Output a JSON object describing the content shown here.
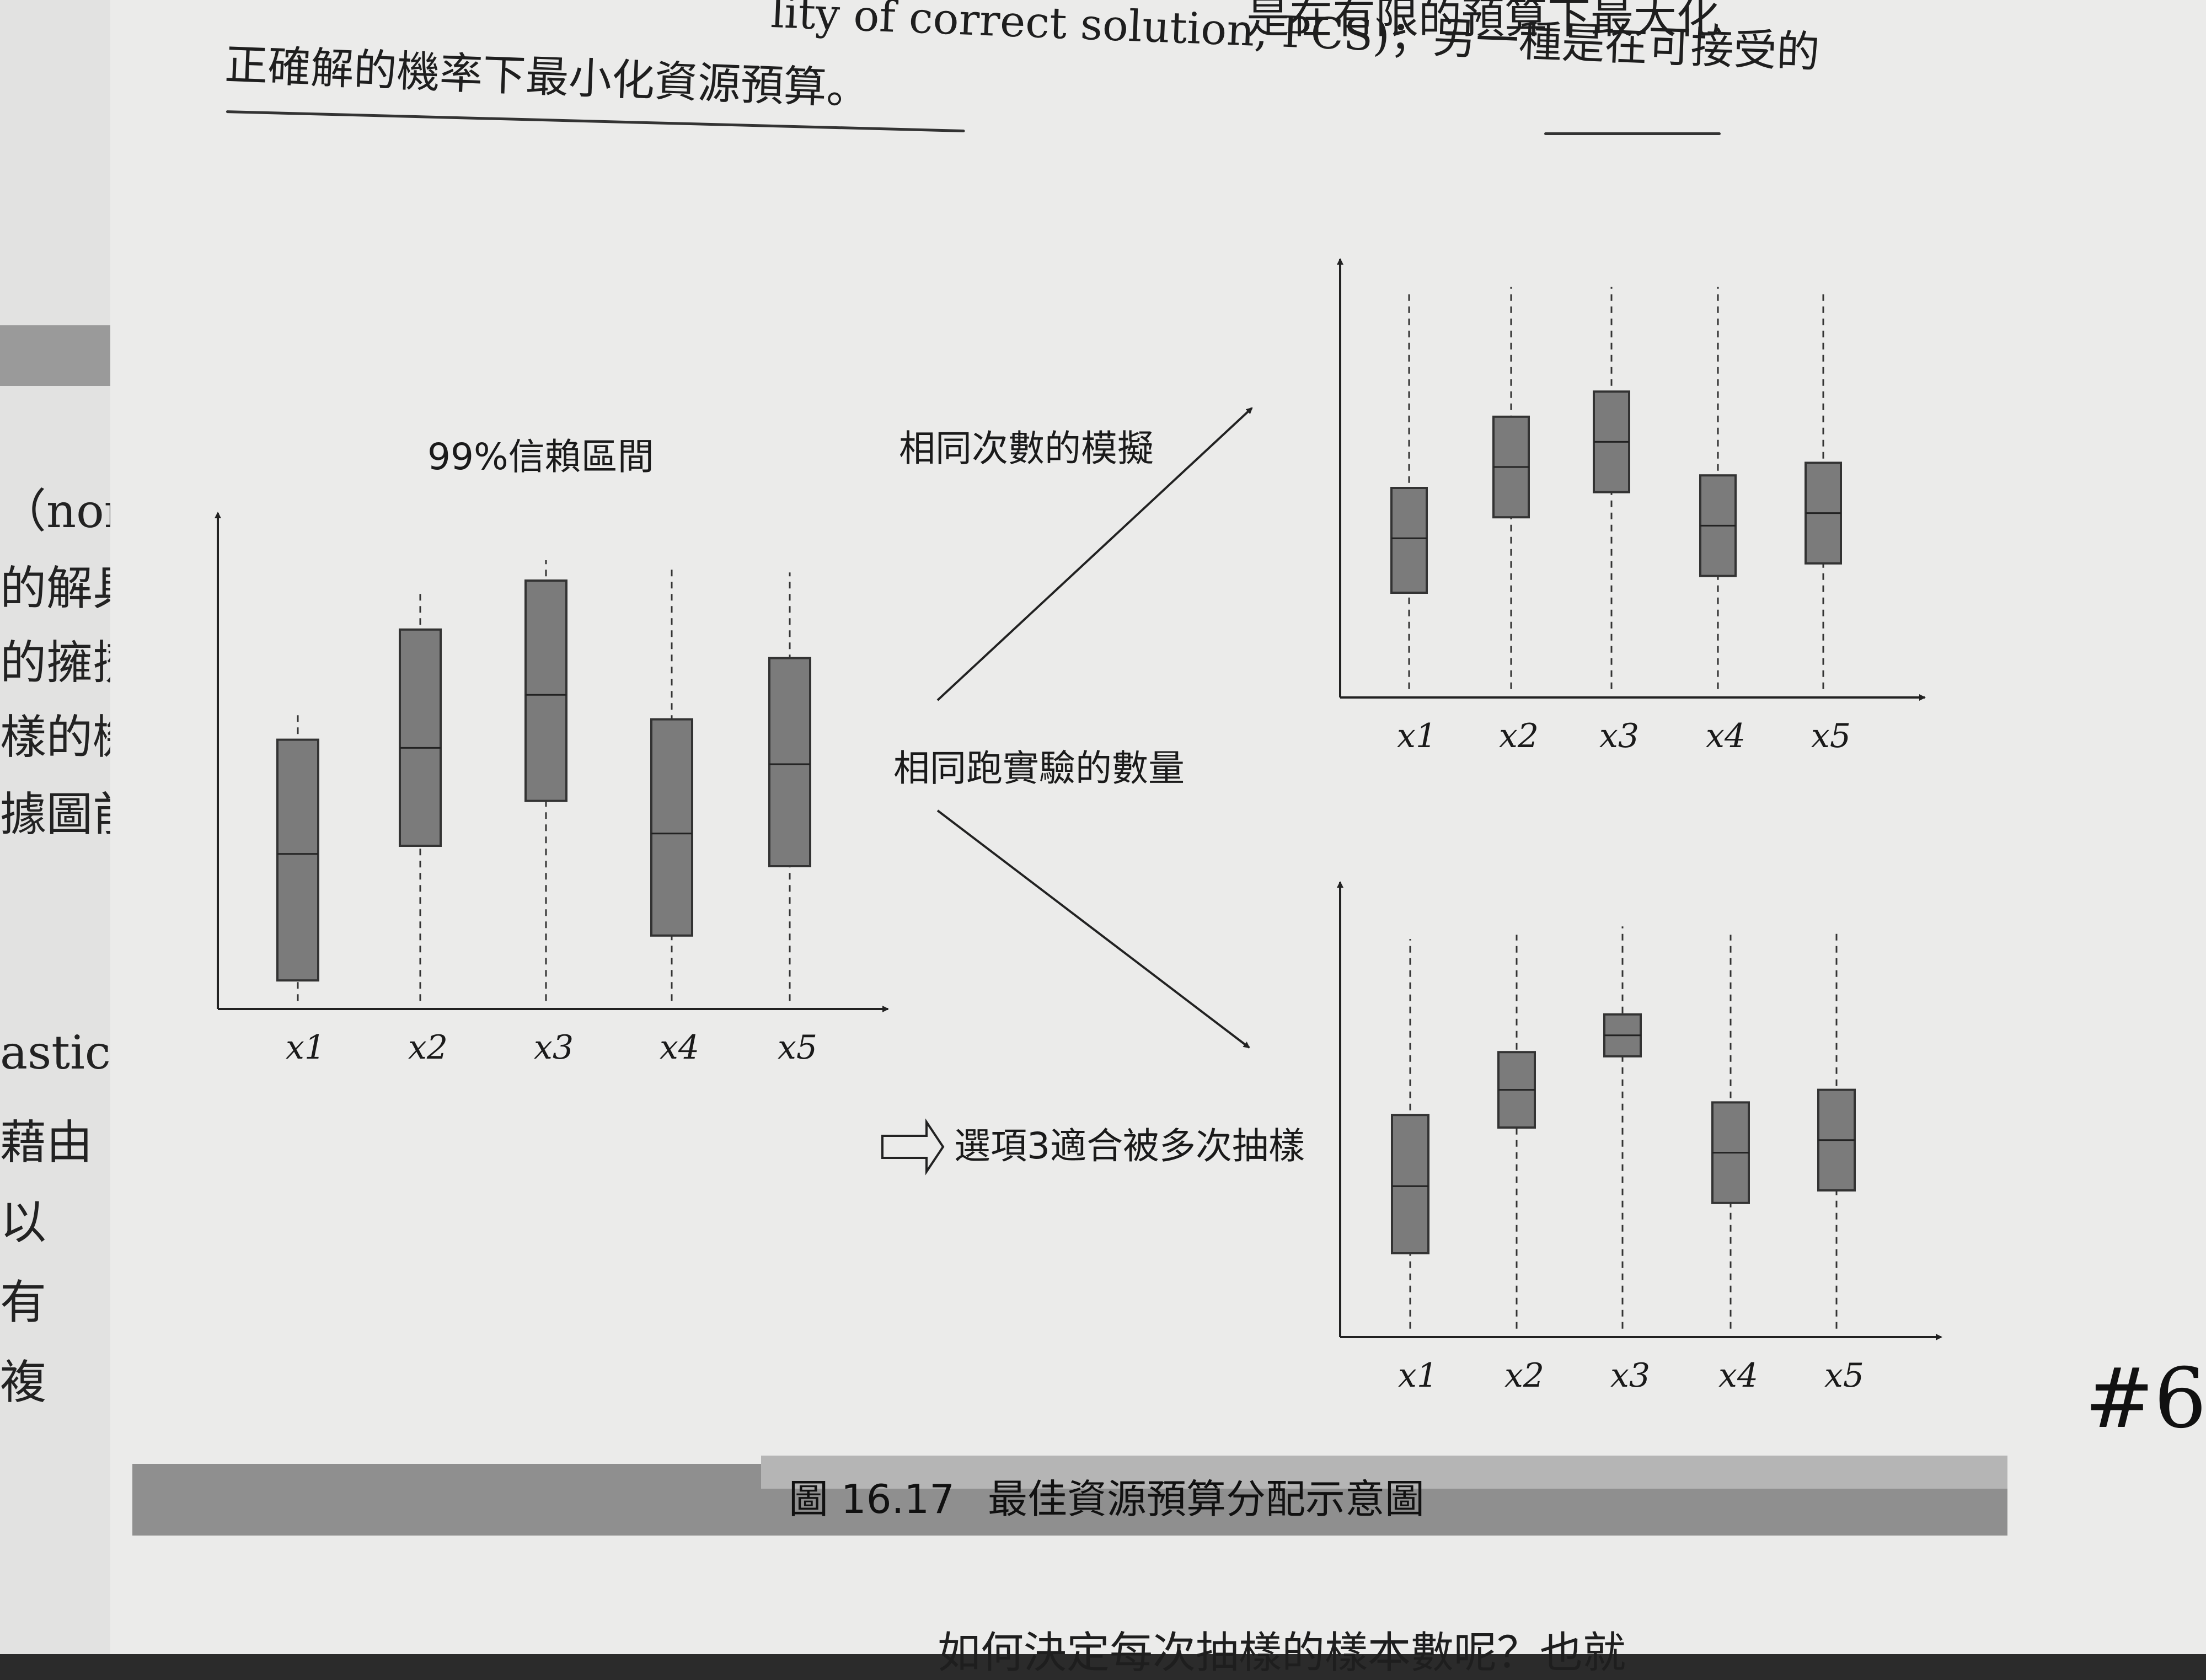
{
  "left_page": {
    "lines": [
      "（non-",
      "的解具",
      "的擁擠",
      "樣的機",
      "據圖前",
      "astic",
      "藉由",
      "以",
      "有",
      "複"
    ]
  },
  "header": {
    "line1_fragment": "lity of correct solution, PCS)；另一種是在可接受的",
    "line1_right": "是在有限的預算下最大化",
    "line2": "正確解的機率下最小化資源預算。"
  },
  "figure": {
    "left_chart_title": "99%信賴區間",
    "arrow_label_top": "相同次數的模擬",
    "arrow_label_mid": "相同跑實驗的數量",
    "conclusion": "選項3適合被多次抽樣",
    "x_tick_labels": [
      "x1",
      "x2",
      "x3",
      "x4",
      "x5"
    ],
    "caption_number": "圖 16.17",
    "caption_text": "最佳資源預算分配示意圖"
  },
  "chart_data": [
    {
      "type": "box",
      "title": "99%信賴區間",
      "categories": [
        "x1",
        "x2",
        "x3",
        "x4",
        "x5"
      ],
      "boxes": [
        {
          "whisker_low": 0.02,
          "q1": 0.07,
          "median": 0.38,
          "q3": 0.66,
          "whisker_high": 0.73
        },
        {
          "whisker_low": 0.02,
          "q1": 0.4,
          "median": 0.64,
          "q3": 0.93,
          "whisker_high": 1.03
        },
        {
          "whisker_low": 0.02,
          "q1": 0.51,
          "median": 0.77,
          "q3": 1.05,
          "whisker_high": 1.1
        },
        {
          "whisker_low": 0.02,
          "q1": 0.18,
          "median": 0.43,
          "q3": 0.71,
          "whisker_high": 1.08
        },
        {
          "whisker_low": 0.02,
          "q1": 0.35,
          "median": 0.6,
          "q3": 0.86,
          "whisker_high": 1.07
        }
      ],
      "ylim": [
        0,
        1.2
      ]
    },
    {
      "type": "box",
      "categories": [
        "x1",
        "x2",
        "x3",
        "x4",
        "x5"
      ],
      "boxes": [
        {
          "whisker_low": 0.02,
          "q1": 0.25,
          "median": 0.38,
          "q3": 0.5,
          "whisker_high": 0.97
        },
        {
          "whisker_low": 0.02,
          "q1": 0.43,
          "median": 0.55,
          "q3": 0.67,
          "whisker_high": 0.98
        },
        {
          "whisker_low": 0.02,
          "q1": 0.49,
          "median": 0.61,
          "q3": 0.73,
          "whisker_high": 0.98
        },
        {
          "whisker_low": 0.02,
          "q1": 0.29,
          "median": 0.41,
          "q3": 0.53,
          "whisker_high": 0.98
        },
        {
          "whisker_low": 0.02,
          "q1": 0.32,
          "median": 0.44,
          "q3": 0.56,
          "whisker_high": 0.97
        }
      ],
      "ylim": [
        0,
        1.0
      ]
    },
    {
      "type": "box",
      "categories": [
        "x1",
        "x2",
        "x3",
        "x4",
        "x5"
      ],
      "boxes": [
        {
          "whisker_low": 0.02,
          "q1": 0.2,
          "median": 0.36,
          "q3": 0.53,
          "whisker_high": 0.95
        },
        {
          "whisker_low": 0.02,
          "q1": 0.5,
          "median": 0.59,
          "q3": 0.68,
          "whisker_high": 0.96
        },
        {
          "whisker_low": 0.02,
          "q1": 0.67,
          "median": 0.72,
          "q3": 0.77,
          "whisker_high": 0.98
        },
        {
          "whisker_low": 0.02,
          "q1": 0.32,
          "median": 0.44,
          "q3": 0.56,
          "whisker_high": 0.96
        },
        {
          "whisker_low": 0.02,
          "q1": 0.35,
          "median": 0.47,
          "q3": 0.59,
          "whisker_high": 0.97
        }
      ],
      "ylim": [
        0,
        1.05
      ]
    }
  ],
  "handwriting": "#6",
  "bottom_fragment": "如何決定每次抽樣的樣本數呢？也就"
}
